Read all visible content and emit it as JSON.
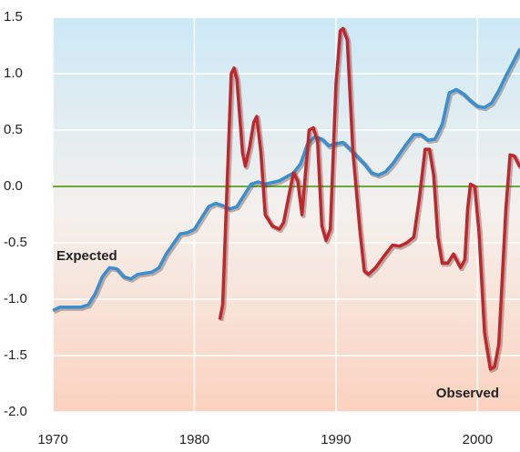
{
  "chart_data": {
    "type": "line",
    "xlim": [
      1970,
      2003
    ],
    "xticks": [
      1970,
      1980,
      1990,
      2000
    ],
    "ylim": [
      -2.0,
      1.5
    ],
    "yticks": [
      {
        "value": -2.0,
        "label": "-2.0"
      },
      -1.5,
      {
        "value": -1.0,
        "label": "-1.0"
      },
      -0.5,
      {
        "value": 0.0,
        "label": "0.0"
      },
      0.5,
      {
        "value": 1.0,
        "label": "1.0"
      },
      1.5
    ],
    "grid": true,
    "zero_line_color": "#6aaa3a",
    "series": [
      {
        "name": "Expected",
        "color": "#3a8fd0",
        "x": [
          1970,
          1970.5,
          1971,
          1972,
          1972.5,
          1973,
          1973.5,
          1974,
          1974.5,
          1975,
          1975.5,
          1976,
          1977,
          1977.5,
          1978,
          1979,
          1979.5,
          1980,
          1981,
          1981.5,
          1982,
          1982.5,
          1983,
          1984,
          1984.5,
          1985,
          1986,
          1987,
          1987.5,
          1988,
          1988.5,
          1989,
          1989.5,
          1990,
          1990.5,
          1991,
          1992,
          1992.5,
          1993,
          1993.5,
          1994,
          1995,
          1995.5,
          1996,
          1996.5,
          1997,
          1997.5,
          1998,
          1998.5,
          1999,
          1999.5,
          2000,
          2000.5,
          2001,
          2001.5,
          2002,
          2003
        ],
        "values": [
          -1.1,
          -1.07,
          -1.07,
          -1.07,
          -1.05,
          -0.95,
          -0.8,
          -0.72,
          -0.73,
          -0.8,
          -0.82,
          -0.78,
          -0.76,
          -0.72,
          -0.6,
          -0.42,
          -0.41,
          -0.38,
          -0.18,
          -0.15,
          -0.17,
          -0.2,
          -0.18,
          0.02,
          0.04,
          0.02,
          0.05,
          0.12,
          0.2,
          0.38,
          0.44,
          0.42,
          0.36,
          0.38,
          0.39,
          0.33,
          0.2,
          0.12,
          0.1,
          0.13,
          0.2,
          0.38,
          0.46,
          0.46,
          0.41,
          0.42,
          0.55,
          0.83,
          0.86,
          0.82,
          0.76,
          0.71,
          0.7,
          0.74,
          0.85,
          0.98,
          1.22
        ]
      },
      {
        "name": "Observed",
        "color": "#c0272d",
        "x": [
          1981.8,
          1982,
          1982.6,
          1982.8,
          1983,
          1983.4,
          1983.6,
          1983.9,
          1984.2,
          1984.4,
          1984.7,
          1985,
          1985.5,
          1986,
          1986.3,
          1986.8,
          1987,
          1987.3,
          1987.6,
          1988.1,
          1988.4,
          1988.7,
          1989,
          1989.3,
          1989.6,
          1990,
          1990.3,
          1990.5,
          1990.8,
          1991.2,
          1991.7,
          1992,
          1992.3,
          1992.8,
          1993.5,
          1994,
          1994.5,
          1995,
          1995.5,
          1995.9,
          1996.3,
          1996.6,
          1996.9,
          1997.2,
          1997.5,
          1997.9,
          1998.3,
          1998.8,
          1999.1,
          1999.3,
          1999.5,
          1999.8,
          2000.1,
          2000.5,
          2000.9,
          2001.2,
          2001.5,
          2002,
          2002.3,
          2002.6,
          2003
        ],
        "values": [
          -1.18,
          -1.05,
          1.0,
          1.05,
          0.95,
          0.3,
          0.18,
          0.35,
          0.57,
          0.62,
          0.3,
          -0.25,
          -0.35,
          -0.38,
          -0.32,
          0.0,
          0.12,
          0.05,
          -0.25,
          0.5,
          0.52,
          0.4,
          -0.35,
          -0.48,
          -0.38,
          0.9,
          1.38,
          1.4,
          1.3,
          0.3,
          -0.4,
          -0.75,
          -0.78,
          -0.72,
          -0.6,
          -0.52,
          -0.53,
          -0.5,
          -0.45,
          -0.1,
          0.33,
          0.33,
          0.1,
          -0.45,
          -0.68,
          -0.68,
          -0.6,
          -0.72,
          -0.65,
          -0.2,
          0.02,
          0.0,
          -0.4,
          -1.3,
          -1.62,
          -1.6,
          -1.4,
          -0.2,
          0.28,
          0.27,
          0.17
        ]
      }
    ]
  }
}
